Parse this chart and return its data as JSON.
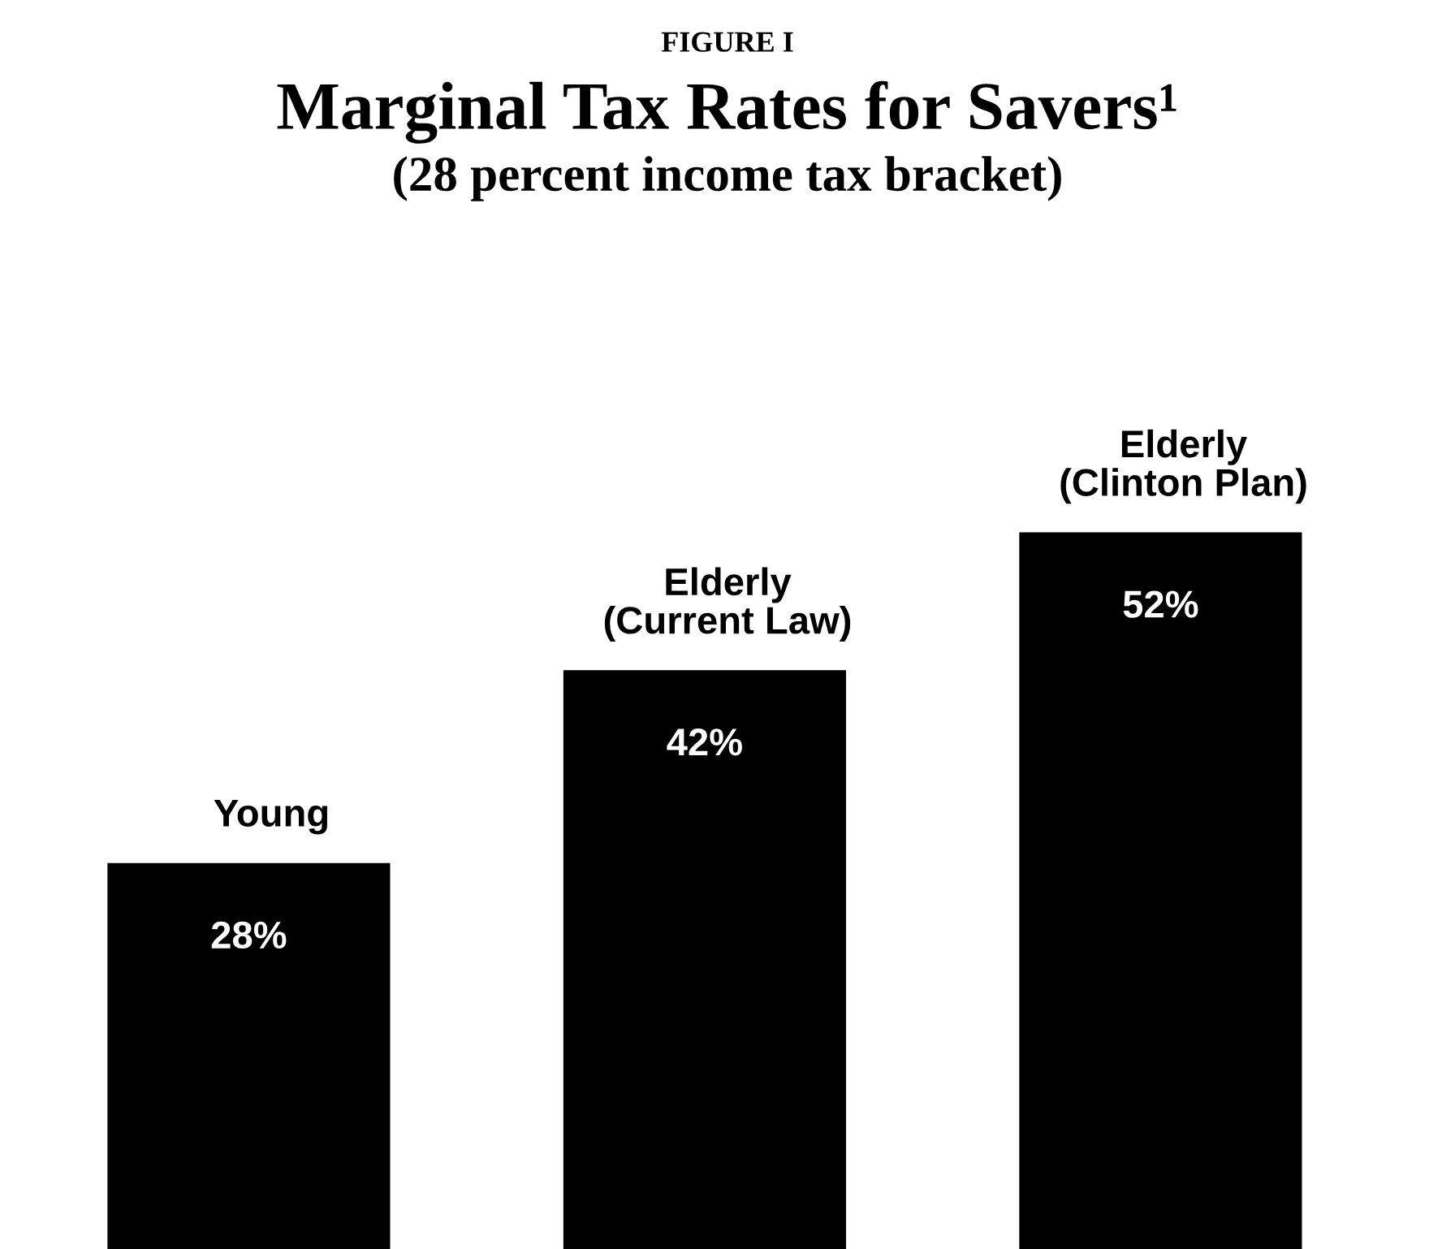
{
  "chart_data": {
    "type": "bar",
    "title": "Marginal Tax Rates for Savers¹",
    "subtitle": "(28 percent income tax bracket)",
    "annotations": [
      "FIGURE I"
    ],
    "categories": [
      "Young",
      "Elderly\n(Current Law)",
      "Elderly\n(Clinton Plan)"
    ],
    "values": [
      28,
      42,
      52
    ],
    "color": "#000000",
    "value_labels": [
      "28%",
      "42%",
      "52%"
    ]
  }
}
